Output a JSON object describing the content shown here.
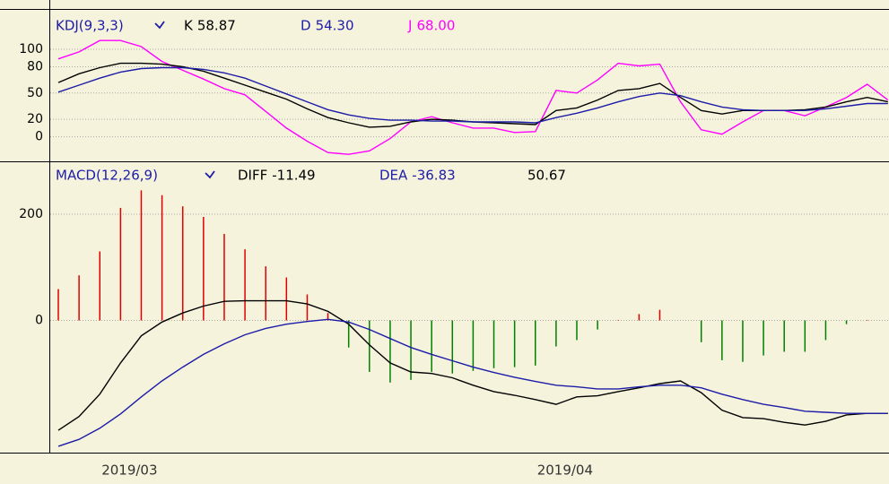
{
  "chart_data": [
    {
      "type": "line",
      "title": "KDJ(9,3,3)",
      "ylim": [
        -28,
        145
      ],
      "yticks": [
        0,
        20,
        50,
        80,
        100
      ],
      "grid": true,
      "series": [
        {
          "name": "K",
          "readout": "58.87",
          "color": "#000000",
          "values": [
            62,
            72,
            79,
            84,
            84,
            83,
            80,
            75,
            67,
            59,
            51,
            43,
            32,
            22,
            16,
            11,
            12,
            17,
            20,
            19,
            17,
            16,
            15,
            14,
            30,
            33,
            42,
            53,
            55,
            61,
            45,
            30,
            26,
            30,
            30,
            30,
            31,
            34,
            40,
            45,
            40
          ]
        },
        {
          "name": "D",
          "readout": "54.30",
          "color": "#1c1ca8",
          "values": [
            51,
            59,
            67,
            74,
            78,
            79,
            79,
            77,
            73,
            67,
            58,
            49,
            40,
            31,
            25,
            21,
            19,
            19,
            18,
            18,
            17,
            17,
            17,
            16,
            22,
            27,
            33,
            40,
            46,
            50,
            47,
            40,
            34,
            31,
            30,
            30,
            30,
            32,
            35,
            38,
            38
          ]
        },
        {
          "name": "J",
          "readout": "68.00",
          "color": "#ff00ff",
          "values": [
            89,
            97,
            110,
            110,
            103,
            86,
            76,
            66,
            55,
            48,
            29,
            10,
            -5,
            -18,
            -20,
            -16,
            -2,
            17,
            23,
            16,
            10,
            10,
            5,
            6,
            53,
            50,
            65,
            84,
            81,
            83,
            40,
            8,
            3,
            17,
            30,
            30,
            24,
            34,
            45,
            60,
            42
          ]
        }
      ]
    },
    {
      "type": "bar",
      "title": "MACD(12,26,9)",
      "categories": [
        null,
        null,
        null,
        "2019/03",
        null,
        null,
        null,
        null,
        null,
        null,
        null,
        null,
        null,
        null,
        null,
        null,
        null,
        null,
        null,
        null,
        null,
        null,
        null,
        null,
        "2019/04",
        null,
        null,
        null,
        null,
        null,
        null,
        null,
        null,
        null,
        null,
        null,
        null,
        null,
        null,
        null,
        null
      ],
      "ylim": [
        -249,
        298
      ],
      "yticks": [
        0,
        200
      ],
      "grid": true,
      "histogram": {
        "readout": "50.67",
        "up_color": "#e00000",
        "down_color": "#008000",
        "values": [
          59,
          85,
          130,
          212,
          245,
          236,
          215,
          195,
          163,
          134,
          102,
          81,
          49,
          14,
          -51,
          -97,
          -117,
          -112,
          -97,
          -100,
          -95,
          -90,
          -88,
          -85,
          -49,
          -37,
          -17,
          1,
          12,
          20,
          0,
          -41,
          -75,
          -78,
          -66,
          -59,
          -59,
          -37,
          -7,
          1,
          0
        ]
      },
      "series": [
        {
          "name": "DIFF",
          "readout": "-11.49",
          "color": "#000000",
          "values": [
            -207,
            -181,
            -139,
            -80,
            -29,
            -3,
            14,
            27,
            36,
            37,
            37,
            37,
            31,
            17,
            -7,
            -46,
            -80,
            -97,
            -100,
            -108,
            -122,
            -134,
            -141,
            -149,
            -158,
            -144,
            -142,
            -134,
            -127,
            -119,
            -114,
            -136,
            -169,
            -183,
            -185,
            -192,
            -197,
            -190,
            -178,
            -175,
            -175
          ]
        },
        {
          "name": "DEA",
          "readout": "-36.83",
          "color": "#1c1ca8",
          "values": [
            -237,
            -224,
            -203,
            -176,
            -144,
            -114,
            -88,
            -64,
            -44,
            -27,
            -15,
            -7,
            -2,
            2,
            -3,
            -17,
            -34,
            -51,
            -64,
            -76,
            -88,
            -98,
            -107,
            -115,
            -122,
            -125,
            -129,
            -129,
            -125,
            -122,
            -122,
            -127,
            -139,
            -149,
            -158,
            -164,
            -171,
            -173,
            -175,
            -175,
            -175
          ]
        }
      ]
    }
  ]
}
